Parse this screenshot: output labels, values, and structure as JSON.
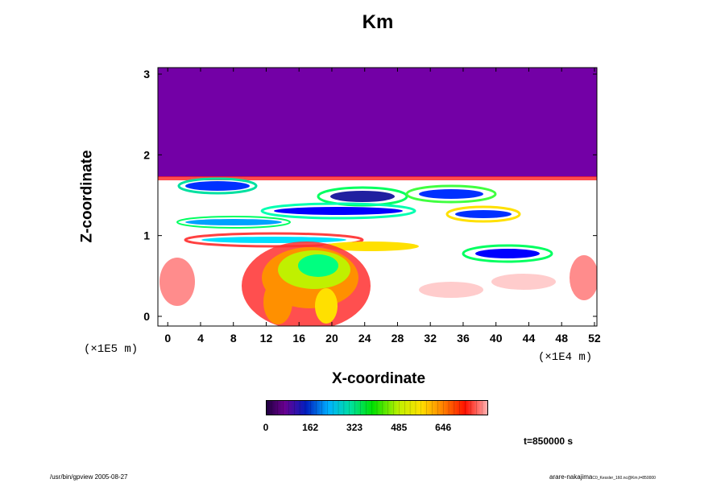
{
  "chart_data": {
    "type": "heatmap",
    "title": "Km",
    "xlabel": "X-coordinate",
    "ylabel": "Z-coordinate",
    "x_scale_label": "(×1E4 m)",
    "y_scale_label": "(×1E5 m)",
    "xlim": [
      -1.2,
      52.3
    ],
    "ylim": [
      -0.12,
      3.08
    ],
    "x_ticks": [
      "0",
      "4",
      "8",
      "12",
      "16",
      "20",
      "24",
      "28",
      "32",
      "36",
      "40",
      "44",
      "48",
      "52"
    ],
    "y_ticks": [
      "0",
      "1",
      "2",
      "3"
    ],
    "colorbar": {
      "ticks": [
        "0",
        "162",
        "323",
        "485",
        "646"
      ],
      "min": 0,
      "max": 810
    },
    "fields": {
      "upper_region": {
        "z_range": [
          1.73,
          3.08
        ],
        "value": 0
      },
      "lower_region": {
        "z_range": [
          -0.12,
          1.73
        ],
        "description_values": "mixed 0–810"
      }
    }
  },
  "time_label": "t=850000 s",
  "footer": {
    "left": "/usr/bin/gpview 2005-08-27",
    "right_main": "arare-nakajima",
    "right_small": "C0_Kessler_160.nc@Km,t=850000"
  }
}
